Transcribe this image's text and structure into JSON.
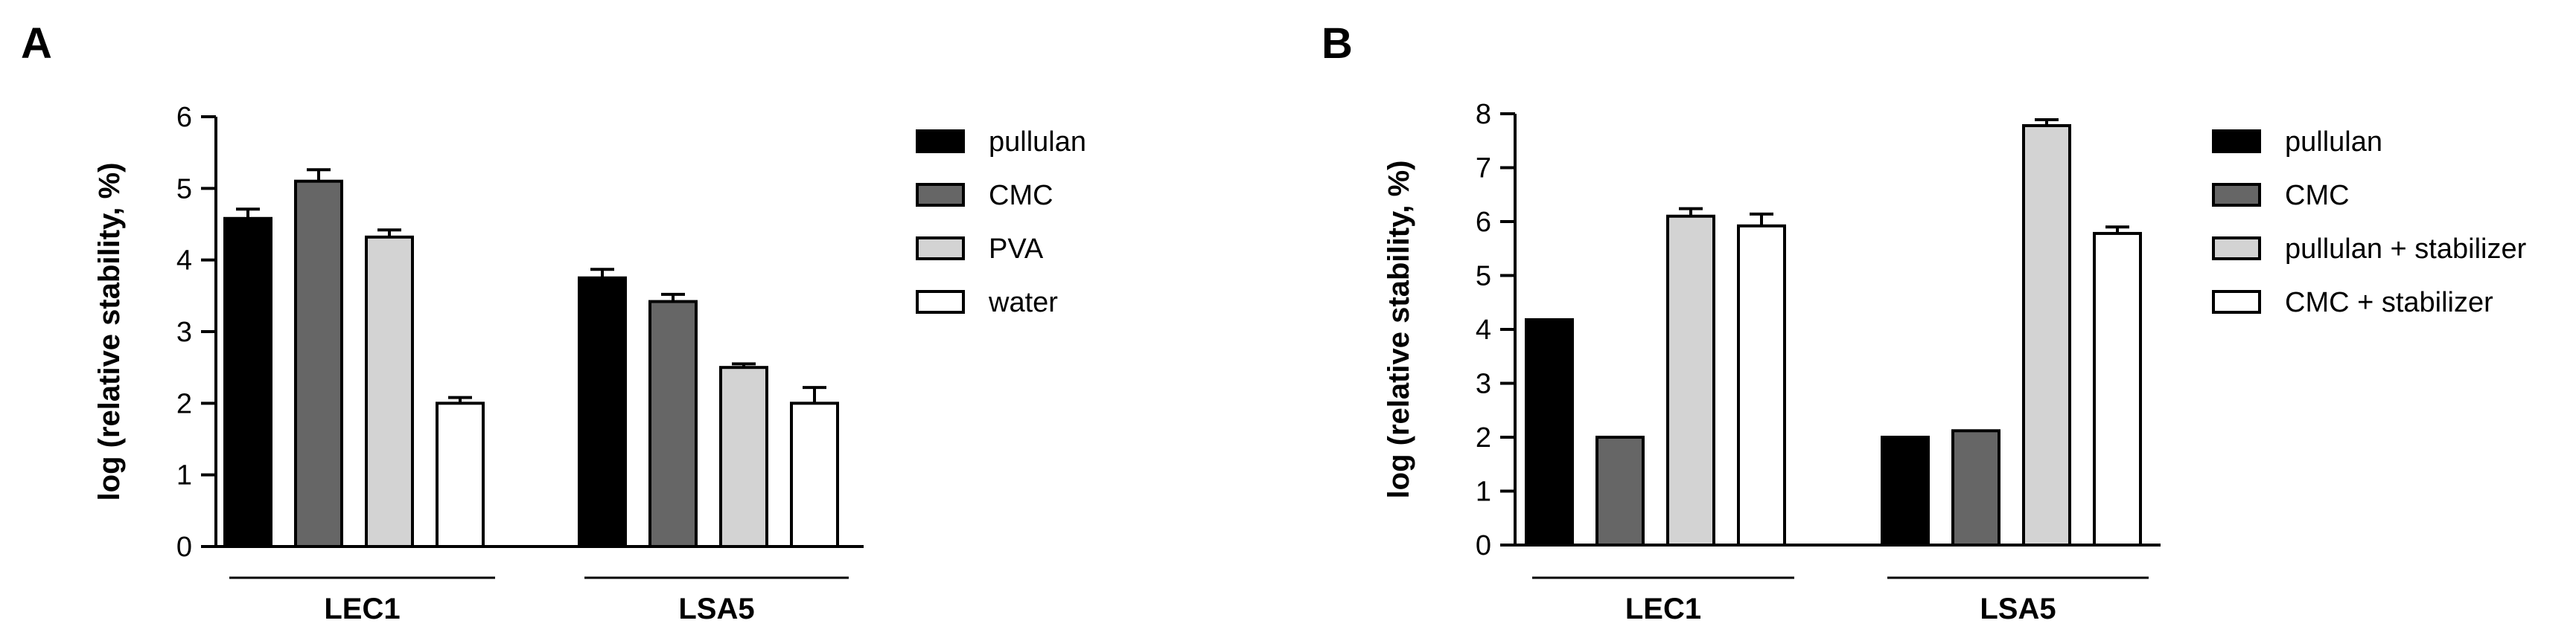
{
  "chart_data": [
    {
      "panel": "A",
      "type": "bar",
      "title": "",
      "xlabel": "",
      "ylabel": "log (relative stability, %)",
      "ylim": [
        0,
        6
      ],
      "yticks": [
        0,
        1,
        2,
        3,
        4,
        5,
        6
      ],
      "grid": false,
      "legend_position": "right",
      "categories": [
        "LEC1",
        "LSA5"
      ],
      "series": [
        {
          "name": "pullulan",
          "color": "#000000",
          "values": [
            4.58,
            3.75
          ],
          "errors": [
            0.13,
            0.12
          ]
        },
        {
          "name": "CMC",
          "color": "#666666",
          "values": [
            5.1,
            3.42
          ],
          "errors": [
            0.16,
            0.1
          ]
        },
        {
          "name": "PVA",
          "color": "#d3d3d3",
          "values": [
            4.32,
            2.5
          ],
          "errors": [
            0.1,
            0.05
          ]
        },
        {
          "name": "water",
          "color": "#ffffff",
          "values": [
            2.0,
            2.0
          ],
          "errors": [
            0.08,
            0.22
          ]
        }
      ]
    },
    {
      "panel": "B",
      "type": "bar",
      "title": "",
      "xlabel": "",
      "ylabel": "log (relative stability, %)",
      "ylim": [
        0,
        8
      ],
      "yticks": [
        0,
        1,
        2,
        3,
        4,
        5,
        6,
        7,
        8
      ],
      "grid": false,
      "legend_position": "right",
      "categories": [
        "LEC1",
        "LSA5"
      ],
      "series": [
        {
          "name": "pullulan",
          "color": "#000000",
          "values": [
            4.18,
            2.0
          ],
          "errors": [
            0,
            0
          ]
        },
        {
          "name": "CMC",
          "color": "#666666",
          "values": [
            2.0,
            2.12
          ],
          "errors": [
            0,
            0
          ]
        },
        {
          "name": "pullulan + stabilizer",
          "color": "#d3d3d3",
          "values": [
            6.1,
            7.78
          ],
          "errors": [
            0.14,
            0.11
          ]
        },
        {
          "name": "CMC + stabilizer",
          "color": "#ffffff",
          "values": [
            5.92,
            5.78
          ],
          "errors": [
            0.22,
            0.12
          ]
        }
      ]
    }
  ]
}
